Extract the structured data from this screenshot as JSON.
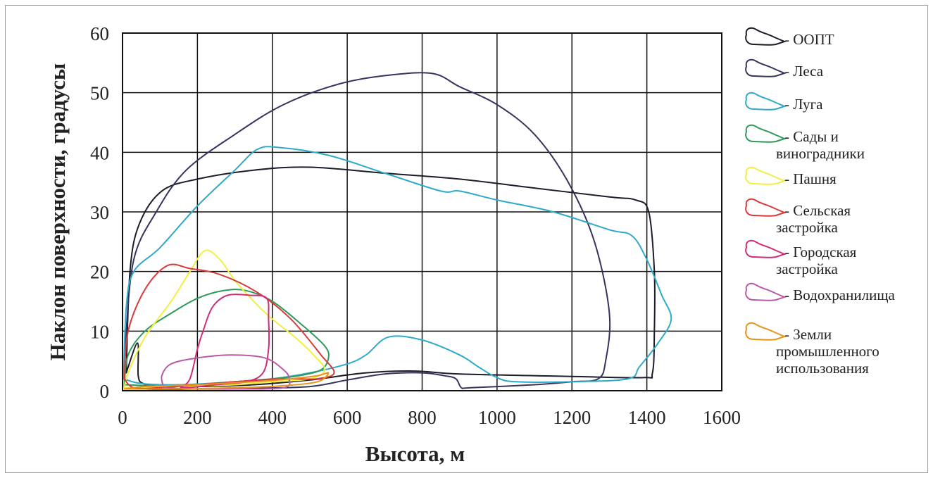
{
  "chart_data": {
    "type": "line",
    "title": "",
    "xlabel": "Высота, м",
    "ylabel": "Наклон поверхности, градусы",
    "xlim": [
      0,
      1600
    ],
    "ylim": [
      0,
      60
    ],
    "x_ticks": [
      "0",
      "200",
      "400",
      "600",
      "800",
      "1000",
      "1200",
      "1400",
      "1600"
    ],
    "y_ticks": [
      "0",
      "10",
      "20",
      "30",
      "40",
      "50",
      "60"
    ],
    "grid": true,
    "legend_position": "right",
    "series": [
      {
        "name": "- ООПТ",
        "color": "#1c1c2a",
        "points": [
          [
            10,
            3
          ],
          [
            20,
            20
          ],
          [
            45,
            28
          ],
          [
            105,
            33.5
          ],
          [
            200,
            35.5
          ],
          [
            350,
            37
          ],
          [
            500,
            37.5
          ],
          [
            700,
            36.5
          ],
          [
            900,
            35.5
          ],
          [
            1100,
            34
          ],
          [
            1300,
            32.5
          ],
          [
            1370,
            32
          ],
          [
            1405,
            30
          ],
          [
            1420,
            20
          ],
          [
            1420,
            10
          ],
          [
            1415,
            3
          ],
          [
            1390,
            2.2
          ],
          [
            1200,
            2.4
          ],
          [
            900,
            2.8
          ],
          [
            780,
            3.3
          ],
          [
            650,
            3
          ],
          [
            500,
            1.8
          ],
          [
            350,
            1
          ],
          [
            200,
            0.7
          ],
          [
            90,
            0.8
          ],
          [
            55,
            1.2
          ],
          [
            42,
            2.5
          ],
          [
            40,
            8
          ],
          [
            10,
            3
          ]
        ]
      },
      {
        "name": "- Леса",
        "color": "#34345f",
        "points": [
          [
            5,
            0.5
          ],
          [
            8,
            8
          ],
          [
            30,
            22
          ],
          [
            90,
            30
          ],
          [
            170,
            37
          ],
          [
            300,
            43
          ],
          [
            430,
            48
          ],
          [
            580,
            51.5
          ],
          [
            720,
            53
          ],
          [
            830,
            53.2
          ],
          [
            900,
            51
          ],
          [
            1000,
            48
          ],
          [
            1100,
            43
          ],
          [
            1190,
            35
          ],
          [
            1260,
            25
          ],
          [
            1300,
            13
          ],
          [
            1290,
            5
          ],
          [
            1270,
            2
          ],
          [
            1200,
            1.5
          ],
          [
            1100,
            1
          ],
          [
            930,
            0.5
          ],
          [
            905,
            0.5
          ],
          [
            890,
            2
          ],
          [
            860,
            2.5
          ],
          [
            800,
            3
          ],
          [
            700,
            2.8
          ],
          [
            600,
            1.8
          ],
          [
            500,
            0.7
          ],
          [
            350,
            0.4
          ],
          [
            200,
            0.3
          ],
          [
            100,
            0.2
          ],
          [
            5,
            0.5
          ]
        ]
      },
      {
        "name": "- Луга",
        "color": "#2eaac8",
        "points": [
          [
            3,
            2
          ],
          [
            10,
            14
          ],
          [
            30,
            20
          ],
          [
            100,
            24
          ],
          [
            200,
            31
          ],
          [
            300,
            37
          ],
          [
            360,
            40.5
          ],
          [
            420,
            40.8
          ],
          [
            550,
            39.5
          ],
          [
            700,
            36.5
          ],
          [
            850,
            33.5
          ],
          [
            900,
            33.5
          ],
          [
            1000,
            32
          ],
          [
            1150,
            30
          ],
          [
            1300,
            27
          ],
          [
            1360,
            26
          ],
          [
            1400,
            22
          ],
          [
            1440,
            16
          ],
          [
            1465,
            12
          ],
          [
            1430,
            8
          ],
          [
            1380,
            4
          ],
          [
            1350,
            2
          ],
          [
            1200,
            1.5
          ],
          [
            1050,
            1.5
          ],
          [
            1000,
            2.2
          ],
          [
            950,
            4
          ],
          [
            900,
            6
          ],
          [
            800,
            8.5
          ],
          [
            710,
            9
          ],
          [
            650,
            6
          ],
          [
            600,
            4.5
          ],
          [
            500,
            3
          ],
          [
            400,
            2
          ],
          [
            300,
            1.5
          ],
          [
            150,
            1
          ],
          [
            50,
            1.2
          ],
          [
            3,
            2
          ]
        ]
      },
      {
        "name": "- Сады и виноградники",
        "color": "#2e9a5a",
        "points": [
          [
            5,
            1
          ],
          [
            15,
            6
          ],
          [
            60,
            10
          ],
          [
            130,
            13
          ],
          [
            200,
            15.5
          ],
          [
            270,
            16.8
          ],
          [
            330,
            16.8
          ],
          [
            400,
            15
          ],
          [
            480,
            11
          ],
          [
            540,
            7.5
          ],
          [
            550,
            5.5
          ],
          [
            530,
            3.5
          ],
          [
            470,
            2.5
          ],
          [
            400,
            2
          ],
          [
            300,
            1.5
          ],
          [
            200,
            1
          ],
          [
            100,
            0.8
          ],
          [
            5,
            1
          ]
        ]
      },
      {
        "name": "- Пашня",
        "color": "#f0f040",
        "points": [
          [
            5,
            0.5
          ],
          [
            15,
            3
          ],
          [
            60,
            9
          ],
          [
            130,
            15
          ],
          [
            180,
            20
          ],
          [
            220,
            23.5
          ],
          [
            260,
            22
          ],
          [
            300,
            18.5
          ],
          [
            350,
            15
          ],
          [
            400,
            12
          ],
          [
            460,
            9
          ],
          [
            510,
            6
          ],
          [
            540,
            3.5
          ],
          [
            500,
            2
          ],
          [
            400,
            1.5
          ],
          [
            300,
            1
          ],
          [
            150,
            0.7
          ],
          [
            5,
            0.5
          ]
        ]
      },
      {
        "name": "- Сельская застройка",
        "color": "#d83a3a",
        "points": [
          [
            5,
            2
          ],
          [
            15,
            10
          ],
          [
            60,
            17
          ],
          [
            120,
            21
          ],
          [
            180,
            20.5
          ],
          [
            260,
            19.5
          ],
          [
            360,
            16.5
          ],
          [
            450,
            12
          ],
          [
            530,
            6
          ],
          [
            565,
            3
          ],
          [
            520,
            2
          ],
          [
            450,
            2
          ],
          [
            370,
            1.8
          ],
          [
            300,
            1.5
          ],
          [
            200,
            1
          ],
          [
            100,
            0.5
          ],
          [
            30,
            0.5
          ],
          [
            5,
            2
          ]
        ]
      },
      {
        "name": "- Городская застройка",
        "color": "#d42a7a",
        "points": [
          [
            155,
            0.5
          ],
          [
            180,
            2
          ],
          [
            200,
            7
          ],
          [
            215,
            10
          ],
          [
            240,
            14
          ],
          [
            280,
            16
          ],
          [
            340,
            16
          ],
          [
            385,
            15.5
          ],
          [
            390,
            12
          ],
          [
            390,
            7
          ],
          [
            375,
            3
          ],
          [
            330,
            1.5
          ],
          [
            250,
            1
          ],
          [
            175,
            0.5
          ],
          [
            155,
            0.5
          ]
        ]
      },
      {
        "name": "- Водохранилища",
        "color": "#b85aa8",
        "points": [
          [
            110,
            0.5
          ],
          [
            105,
            2.5
          ],
          [
            130,
            4.5
          ],
          [
            200,
            5.5
          ],
          [
            290,
            6
          ],
          [
            380,
            5.5
          ],
          [
            430,
            3.5
          ],
          [
            445,
            2
          ],
          [
            430,
            0.5
          ],
          [
            300,
            0.3
          ],
          [
            180,
            0.3
          ],
          [
            110,
            0.5
          ]
        ]
      },
      {
        "name": "- Земли промышленного использования",
        "color": "#e8941a",
        "points": [
          [
            5,
            0.3
          ],
          [
            60,
            0.7
          ],
          [
            200,
            1
          ],
          [
            350,
            1.5
          ],
          [
            450,
            2
          ],
          [
            520,
            2.5
          ],
          [
            550,
            3
          ],
          [
            520,
            1.5
          ],
          [
            420,
            0.8
          ],
          [
            300,
            0.5
          ],
          [
            150,
            0.3
          ],
          [
            5,
            0.3
          ]
        ]
      }
    ]
  }
}
